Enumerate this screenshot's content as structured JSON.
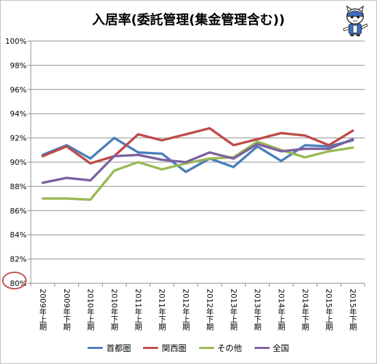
{
  "chart_data": {
    "type": "line",
    "title": "入居率(委託管理(集金管理含む))",
    "xlabel": "",
    "ylabel": "",
    "categories": [
      "2009年上期",
      "2009年下期",
      "2010年上期",
      "2010年下期",
      "2011年上期",
      "2011年下期",
      "2012年上期",
      "2012年下期",
      "2013年上期",
      "2013年下期",
      "2014年上期",
      "2014年下期",
      "2015年上期",
      "2015年下期"
    ],
    "ylim": [
      80,
      100
    ],
    "y_ticks": [
      "80%",
      "82%",
      "84%",
      "86%",
      "88%",
      "90%",
      "92%",
      "94%",
      "96%",
      "98%",
      "100%"
    ],
    "grid": true,
    "legend_position": "bottom",
    "series": [
      {
        "name": "首都圏",
        "color": "#4a7ebb",
        "values": [
          90.6,
          91.4,
          90.3,
          92.0,
          90.8,
          90.7,
          89.2,
          90.3,
          89.6,
          91.3,
          90.1,
          91.4,
          91.3,
          91.8
        ]
      },
      {
        "name": "関西圏",
        "color": "#be4b48",
        "values": [
          90.5,
          91.3,
          89.9,
          90.5,
          92.3,
          91.8,
          92.3,
          92.8,
          91.4,
          91.9,
          92.4,
          92.2,
          91.4,
          92.6
        ]
      },
      {
        "name": "その他",
        "color": "#98b954",
        "values": [
          87.0,
          87.0,
          86.9,
          89.3,
          90.0,
          89.4,
          89.9,
          90.3,
          90.4,
          91.7,
          91.0,
          90.4,
          90.9,
          91.2
        ]
      },
      {
        "name": "全国",
        "color": "#7d60a0",
        "values": [
          88.3,
          88.7,
          88.5,
          90.5,
          90.6,
          90.2,
          90.0,
          90.8,
          90.3,
          91.5,
          90.9,
          91.1,
          91.1,
          91.9
        ]
      }
    ]
  }
}
